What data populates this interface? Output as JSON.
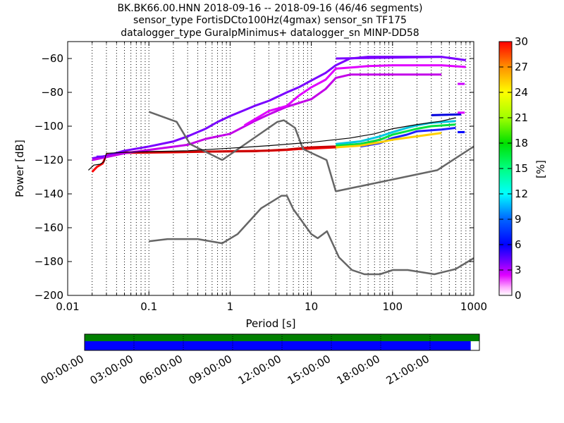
{
  "title": {
    "line1": "BK.BK66.00.HNN   2018-09-16 -- 2018-09-16  (46/46 segments)",
    "line2": "sensor_type FortisDCto100Hz(4gmax) sensor_sn TF175",
    "line3": "datalogger_type GuralpMinimus+ datalogger_sn MINP-DD58"
  },
  "chart_data": {
    "type": "heatmap",
    "subtype": "probabilistic power spectral density",
    "xlabel": "Period [s]",
    "ylabel": "Power [dB]",
    "xscale": "log",
    "xlim": [
      0.01,
      1000
    ],
    "ylim": [
      -200,
      -50
    ],
    "xticks": [
      {
        "value": 0.01,
        "label": "0.01"
      },
      {
        "value": 0.1,
        "label": "0.1"
      },
      {
        "value": 1,
        "label": "1"
      },
      {
        "value": 10,
        "label": "10"
      },
      {
        "value": 100,
        "label": "100"
      },
      {
        "value": 1000,
        "label": "1000"
      }
    ],
    "yticks": [
      -60,
      -80,
      -100,
      -120,
      -140,
      -160,
      -180,
      -200
    ],
    "grid": "vertical dotted",
    "colorbar": {
      "label": "[%]",
      "range": [
        0,
        30
      ],
      "ticks": [
        0,
        3,
        6,
        9,
        12,
        15,
        18,
        21,
        24,
        27,
        30
      ],
      "colormap": "pqlx"
    },
    "noise_models": [
      {
        "name": "NHNM",
        "color": "#666666",
        "points": [
          [
            0.1,
            -91.5
          ],
          [
            0.22,
            -97.4
          ],
          [
            0.32,
            -110.5
          ],
          [
            0.8,
            -120
          ],
          [
            3.8,
            -97.5
          ],
          [
            4.6,
            -96.5
          ],
          [
            6.3,
            -101
          ],
          [
            7.9,
            -113.5
          ],
          [
            15.4,
            -120
          ],
          [
            20,
            -138.5
          ],
          [
            354.8,
            -126
          ],
          [
            1000,
            -112
          ]
        ]
      },
      {
        "name": "NLNM",
        "color": "#666666",
        "points": [
          [
            0.1,
            -168
          ],
          [
            0.17,
            -166.7
          ],
          [
            0.4,
            -166.7
          ],
          [
            0.8,
            -169.2
          ],
          [
            1.24,
            -163.7
          ],
          [
            2.4,
            -148.6
          ],
          [
            4.3,
            -141.1
          ],
          [
            5,
            -141.1
          ],
          [
            6,
            -149
          ],
          [
            10,
            -163.8
          ],
          [
            12,
            -166.2
          ],
          [
            15.6,
            -162.1
          ],
          [
            21.9,
            -177.5
          ],
          [
            31.6,
            -185
          ],
          [
            45,
            -187.5
          ],
          [
            70,
            -187.5
          ],
          [
            101,
            -185
          ],
          [
            154,
            -185
          ],
          [
            328,
            -187.5
          ],
          [
            600,
            -184.4
          ],
          [
            1000,
            -178
          ]
        ]
      }
    ],
    "mean_curve": {
      "color": "#000000",
      "points": [
        [
          0.018,
          -126
        ],
        [
          0.021,
          -123
        ],
        [
          0.025,
          -122.5
        ],
        [
          0.028,
          -121
        ],
        [
          0.03,
          -116
        ],
        [
          0.05,
          -115.5
        ],
        [
          0.1,
          -115
        ],
        [
          0.3,
          -114.5
        ],
        [
          1,
          -113
        ],
        [
          3,
          -111.5
        ],
        [
          10,
          -109.5
        ],
        [
          30,
          -107
        ],
        [
          60,
          -104.5
        ],
        [
          100,
          -101.5
        ],
        [
          200,
          -99
        ],
        [
          400,
          -97
        ],
        [
          600,
          -95
        ]
      ]
    },
    "pdf_bands": [
      {
        "color": "#ff0000",
        "points": [
          [
            0.02,
            -127
          ],
          [
            0.023,
            -124
          ],
          [
            0.027,
            -122
          ],
          [
            0.03,
            -117
          ],
          [
            0.05,
            -115.8
          ],
          [
            0.2,
            -115.4
          ],
          [
            1,
            -114.8
          ],
          [
            3,
            -114.5
          ],
          [
            5,
            -114
          ],
          [
            7,
            -113.5
          ],
          [
            10,
            -113.2
          ],
          [
            15,
            -112.8
          ],
          [
            20,
            -112.5
          ],
          [
            30,
            -111.5
          ],
          [
            50,
            -110
          ],
          [
            80,
            -107
          ]
        ]
      },
      {
        "color": "#cc0000",
        "points": [
          [
            0.05,
            -115.5
          ],
          [
            0.5,
            -115
          ],
          [
            2,
            -114.8
          ],
          [
            5,
            -113.8
          ],
          [
            10,
            -112.5
          ],
          [
            20,
            -112
          ],
          [
            40,
            -110.5
          ],
          [
            70,
            -108
          ]
        ]
      },
      {
        "color": "#7a00ff",
        "points": [
          [
            0.02,
            -119
          ],
          [
            0.03,
            -117.5
          ],
          [
            0.05,
            -114.5
          ],
          [
            0.1,
            -112
          ],
          [
            0.2,
            -109
          ],
          [
            0.3,
            -106
          ],
          [
            0.5,
            -101.5
          ],
          [
            0.7,
            -97.5
          ],
          [
            1,
            -94
          ],
          [
            1.5,
            -90.5
          ],
          [
            2,
            -88
          ],
          [
            3,
            -85
          ],
          [
            5,
            -80
          ],
          [
            7,
            -77
          ],
          [
            10,
            -73
          ],
          [
            15,
            -68.5
          ],
          [
            20,
            -64
          ],
          [
            30,
            -60
          ],
          [
            50,
            -59
          ],
          [
            100,
            -59
          ],
          [
            380,
            -59
          ]
        ]
      },
      {
        "color": "#c200e8",
        "points": [
          [
            0.02,
            -120
          ],
          [
            0.05,
            -116
          ],
          [
            0.1,
            -114
          ],
          [
            0.3,
            -111
          ],
          [
            0.5,
            -107.5
          ],
          [
            1,
            -104.5
          ],
          [
            2,
            -97
          ],
          [
            3,
            -93
          ],
          [
            5,
            -88.5
          ],
          [
            10,
            -84
          ],
          [
            15,
            -78
          ],
          [
            20,
            -71.5
          ],
          [
            30,
            -69.5
          ],
          [
            100,
            -69.5
          ],
          [
            400,
            -69.5
          ]
        ]
      },
      {
        "color": "#e000ff",
        "points": [
          [
            1.5,
            -99.5
          ],
          [
            3,
            -91
          ],
          [
            5,
            -88
          ],
          [
            7,
            -82
          ],
          [
            10,
            -77
          ],
          [
            15,
            -72.5
          ],
          [
            20,
            -66
          ],
          [
            50,
            -64.5
          ],
          [
            100,
            -64
          ],
          [
            400,
            -64
          ],
          [
            800,
            -65
          ]
        ]
      },
      {
        "color": "#7a00ff",
        "points": [
          [
            20,
            -60
          ],
          [
            400,
            -59
          ],
          [
            800,
            -61
          ]
        ]
      },
      {
        "color": "#00c8e0",
        "points": [
          [
            20,
            -110.5
          ],
          [
            40,
            -109
          ],
          [
            70,
            -106
          ],
          [
            100,
            -103.5
          ],
          [
            150,
            -101
          ],
          [
            200,
            -99.5
          ],
          [
            300,
            -98
          ],
          [
            600,
            -97
          ]
        ]
      },
      {
        "color": "#00e040",
        "points": [
          [
            20,
            -111.5
          ],
          [
            40,
            -110.5
          ],
          [
            70,
            -108
          ],
          [
            100,
            -105
          ],
          [
            150,
            -103
          ],
          [
            200,
            -101.5
          ],
          [
            300,
            -100
          ],
          [
            600,
            -99
          ]
        ]
      },
      {
        "color": "#2020ff",
        "points": [
          [
            40,
            -112
          ],
          [
            70,
            -110
          ],
          [
            100,
            -107
          ],
          [
            150,
            -105
          ],
          [
            200,
            -103
          ],
          [
            400,
            -102
          ],
          [
            600,
            -101
          ]
        ]
      },
      {
        "color": "#ffd000",
        "points": [
          [
            20,
            -112.5
          ],
          [
            40,
            -111.5
          ],
          [
            70,
            -109.5
          ],
          [
            100,
            -108
          ],
          [
            200,
            -106
          ],
          [
            400,
            -104
          ]
        ]
      },
      {
        "color": "#0000dd",
        "points": [
          [
            300,
            -93.5
          ],
          [
            700,
            -93
          ]
        ]
      }
    ],
    "pdf_points": [
      {
        "x": 700,
        "y": -75,
        "color": "#cc00ff"
      },
      {
        "x": 700,
        "y": -92,
        "color": "#dd00ff"
      },
      {
        "x": 700,
        "y": -103.5,
        "color": "#0000ff"
      },
      {
        "x": 0.025,
        "y": -118,
        "color": "#7000ff"
      }
    ]
  },
  "timeline": {
    "labels": [
      "00:00:00",
      "03:00:00",
      "06:00:00",
      "09:00:00",
      "12:00:00",
      "15:00:00",
      "18:00:00",
      "21:00:00"
    ],
    "coverage_fraction": 0.978,
    "data_color": "#0000ff",
    "segment_color": "#008000"
  }
}
